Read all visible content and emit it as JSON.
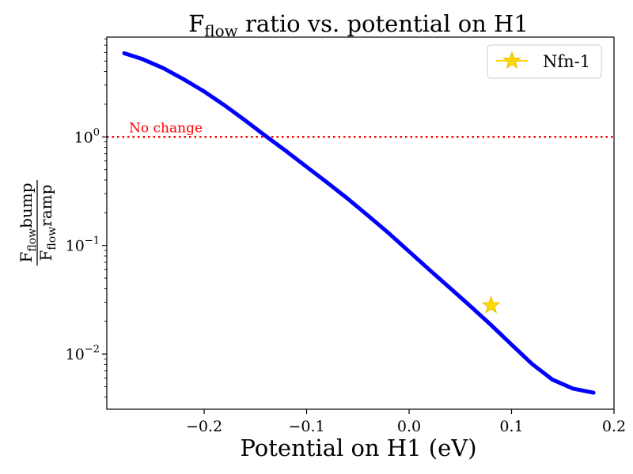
{
  "chart_data": {
    "type": "line",
    "title": {
      "main": "F",
      "sub": "flow",
      "rest": " ratio vs. potential on H1"
    },
    "xlabel": "Potential on H1 (eV)",
    "ylabel": {
      "numerator": {
        "main": "F",
        "sub": "flow",
        "rest": "bump"
      },
      "denominator": {
        "main": "F",
        "sub": "flow",
        "rest": "ramp"
      }
    },
    "yscale": "log",
    "xlim": [
      -0.295,
      0.2
    ],
    "ylim": [
      0.0031,
      8.3
    ],
    "xticks": [
      {
        "value": -0.2,
        "label": "−0.2"
      },
      {
        "value": -0.1,
        "label": "−0.1"
      },
      {
        "value": 0.0,
        "label": "0.0"
      },
      {
        "value": 0.1,
        "label": "0.1"
      },
      {
        "value": 0.2,
        "label": "0.2"
      }
    ],
    "yticks": [
      {
        "value": 1,
        "base": "10",
        "exp": "0"
      },
      {
        "value": 0.1,
        "base": "10",
        "exp": "−1"
      },
      {
        "value": 0.01,
        "base": "10",
        "exp": "−2"
      }
    ],
    "grid": false,
    "series": [
      {
        "color": "#0000ff",
        "x": [
          -0.278,
          -0.26,
          -0.24,
          -0.22,
          -0.2,
          -0.18,
          -0.16,
          -0.14,
          -0.12,
          -0.1,
          -0.08,
          -0.06,
          -0.04,
          -0.02,
          0.0,
          0.02,
          0.04,
          0.06,
          0.08,
          0.1,
          0.12,
          0.14,
          0.16,
          0.18
        ],
        "y": [
          5.9,
          5.2,
          4.3,
          3.4,
          2.62,
          1.95,
          1.42,
          1.02,
          0.74,
          0.53,
          0.38,
          0.27,
          0.188,
          0.13,
          0.088,
          0.0595,
          0.0405,
          0.0275,
          0.0185,
          0.0122,
          0.0081,
          0.0058,
          0.0048,
          0.0044
        ]
      }
    ],
    "reference_line": {
      "y": 1.0,
      "color": "#ff0000",
      "style": "dotted",
      "label": "No change"
    },
    "marker": {
      "name": "Nfn-1",
      "x": 0.08,
      "y": 0.028,
      "color": "#ffd700",
      "shape": "star"
    },
    "legend": {
      "placement": "top-right",
      "entries": [
        "Nfn-1"
      ]
    }
  }
}
